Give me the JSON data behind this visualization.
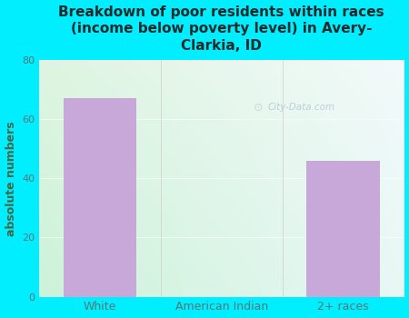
{
  "title": "Breakdown of poor residents within races\n(income below poverty level) in Avery-\nClarkia, ID",
  "categories": [
    "White",
    "American Indian",
    "2+ races"
  ],
  "values": [
    67,
    0,
    46
  ],
  "bar_color": "#c8a8d8",
  "ylabel": "absolute numbers",
  "ylim": [
    0,
    80
  ],
  "yticks": [
    0,
    20,
    40,
    60,
    80
  ],
  "bg_outer": "#00eeff",
  "bg_plot_topleft": "#d8efd8",
  "bg_plot_topright": "#f0f8f8",
  "bg_plot_bottomleft": "#c8f0d8",
  "bg_plot_bottomright": "#e8f8f8",
  "title_color": "#1a2a2a",
  "tick_color": "#557777",
  "ylabel_color": "#446644",
  "watermark": "City-Data.com",
  "watermark_color": "#aabbcc"
}
